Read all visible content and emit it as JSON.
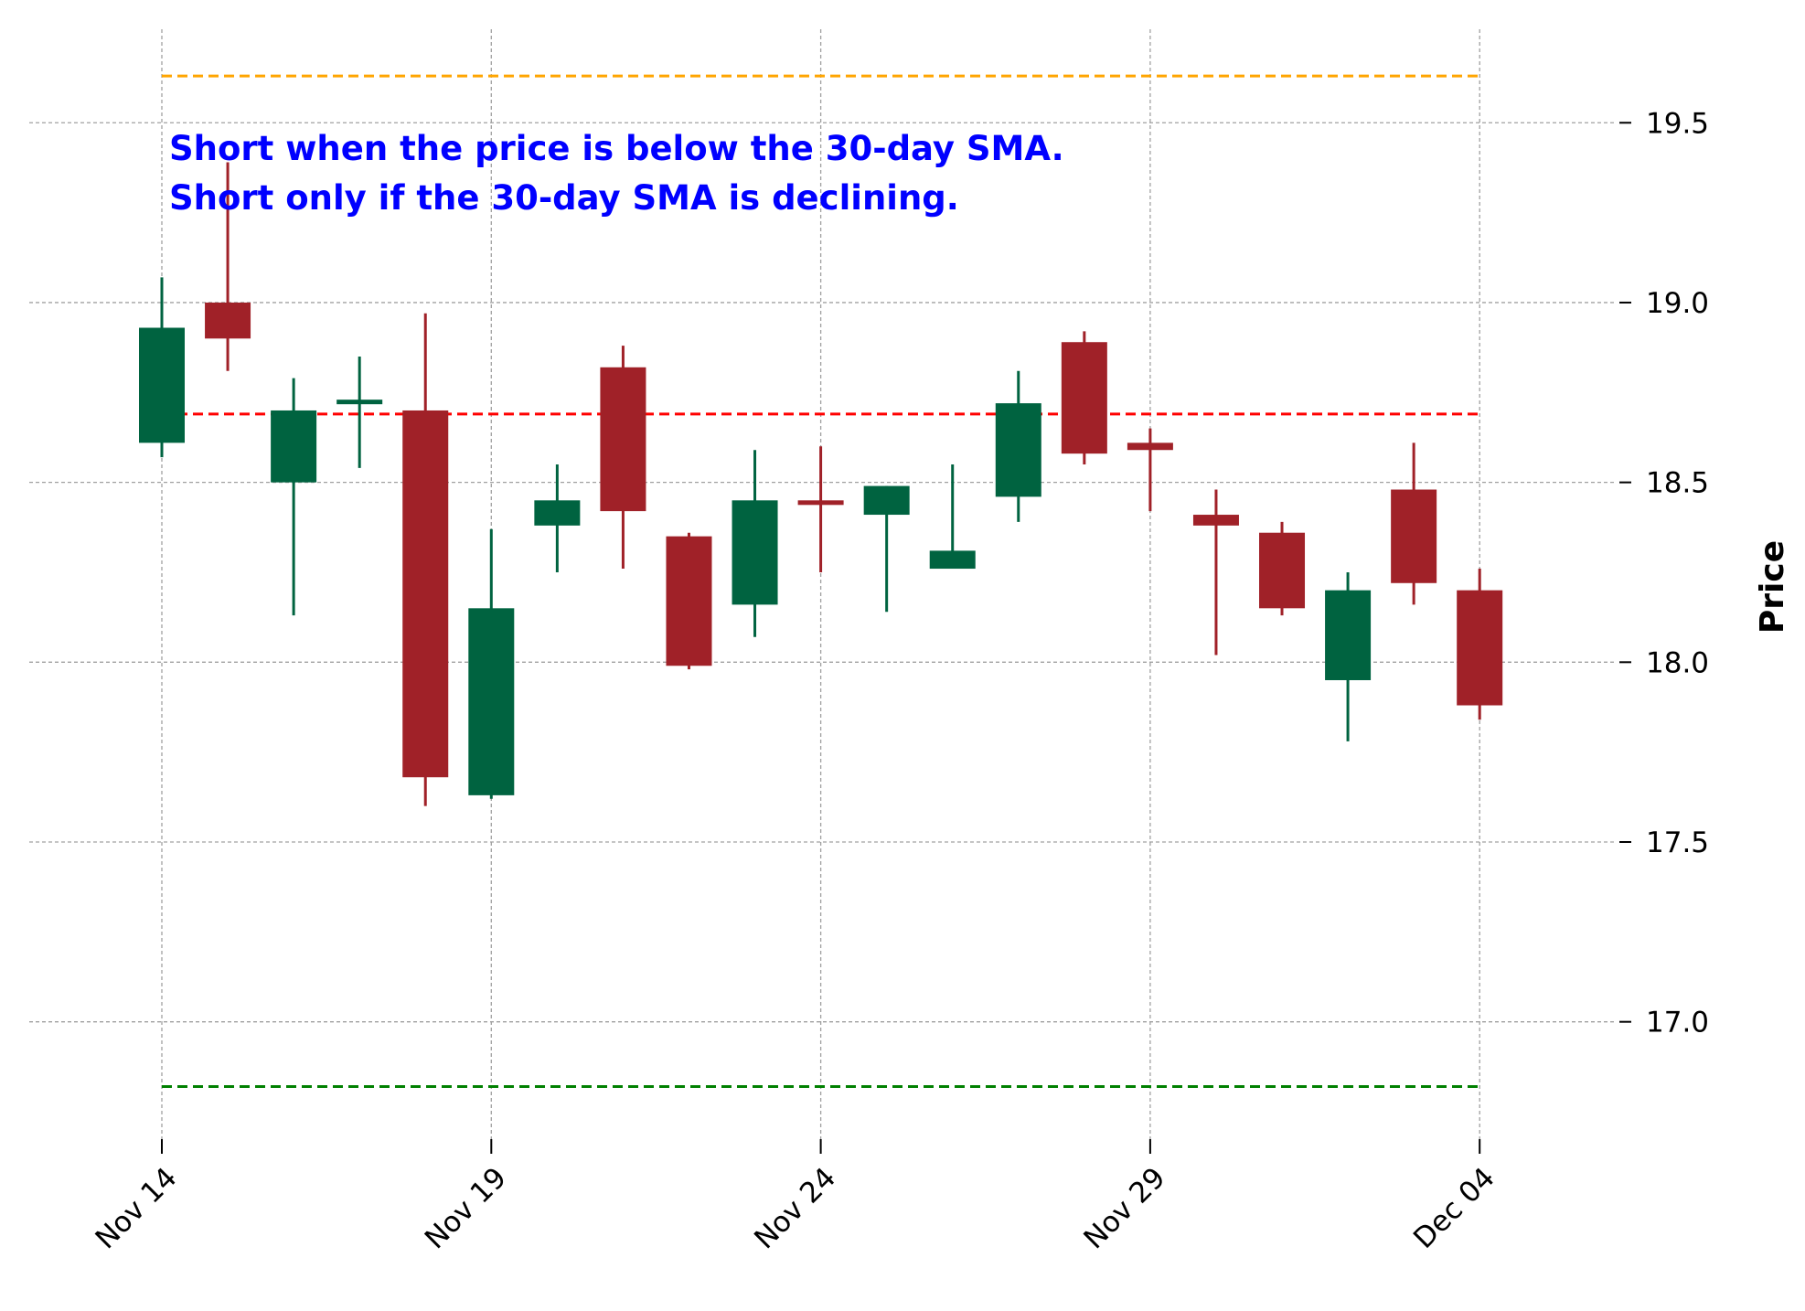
{
  "chart_data": {
    "type": "candlestick",
    "title": "",
    "xlabel": "",
    "ylabel": "Price",
    "ylim": [
      16.656,
      19.76
    ],
    "grid": true,
    "yticks": [
      "17.0",
      "17.5",
      "18.0",
      "18.5",
      "19.0",
      "19.5"
    ],
    "ytick_values": [
      17.0,
      17.5,
      18.0,
      18.5,
      19.0,
      19.5
    ],
    "xtick_labels": [
      "Nov 14",
      "Nov 19",
      "Nov 24",
      "Nov 29",
      "Dec 04"
    ],
    "xtick_indices": [
      0,
      5,
      10,
      15,
      20
    ],
    "dates": [
      "Nov 14",
      "Nov 15",
      "Nov 16",
      "Nov 17",
      "Nov 18",
      "Nov 19",
      "Nov 20",
      "Nov 21",
      "Nov 22",
      "Nov 23",
      "Nov 24",
      "Nov 25",
      "Nov 26",
      "Nov 27",
      "Nov 28",
      "Nov 29",
      "Nov 30",
      "Dec 01",
      "Dec 02",
      "Dec 03",
      "Dec 04"
    ],
    "open": [
      18.61,
      19.0,
      18.5,
      18.72,
      18.7,
      17.63,
      18.38,
      18.82,
      18.35,
      18.16,
      18.45,
      18.41,
      18.26,
      18.46,
      18.89,
      18.61,
      18.41,
      18.36,
      17.95,
      18.48,
      18.2
    ],
    "high": [
      19.07,
      19.39,
      18.79,
      18.85,
      18.97,
      18.37,
      18.55,
      18.88,
      18.36,
      18.59,
      18.6,
      18.49,
      18.55,
      18.81,
      18.92,
      18.65,
      18.48,
      18.39,
      18.25,
      18.61,
      18.26
    ],
    "low": [
      18.57,
      18.81,
      18.13,
      18.54,
      17.6,
      17.62,
      18.25,
      18.26,
      17.98,
      18.07,
      18.25,
      18.14,
      18.26,
      18.39,
      18.55,
      18.42,
      18.02,
      18.13,
      17.78,
      18.16,
      17.84
    ],
    "close": [
      18.93,
      18.9,
      18.7,
      18.73,
      17.68,
      18.15,
      18.45,
      18.42,
      17.99,
      18.45,
      18.44,
      18.49,
      18.31,
      18.72,
      18.58,
      18.59,
      18.38,
      18.15,
      18.2,
      18.22,
      17.88
    ],
    "hlines": [
      {
        "name": "upper-level",
        "value": 19.63,
        "color": "#FFA500"
      },
      {
        "name": "sma-30",
        "value": 18.69,
        "color": "#FF0000"
      },
      {
        "name": "lower-level",
        "value": 16.82,
        "color": "#008000"
      }
    ],
    "colors": {
      "up": "#006340",
      "down": "#A02128",
      "annotation": "#0000FF"
    },
    "annotation": [
      "Short when the price is below the 30-day SMA.",
      "Short only if the 30-day SMA is declining."
    ]
  }
}
